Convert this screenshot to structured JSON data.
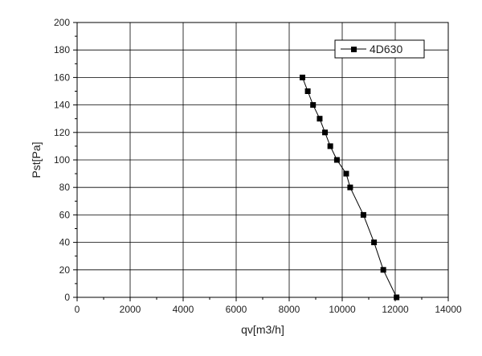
{
  "chart_data": {
    "type": "line",
    "title": "",
    "xlabel": "qv[m3/h]",
    "ylabel": "Pst[Pa]",
    "xlim": [
      0,
      14000
    ],
    "ylim": [
      0,
      200
    ],
    "x_ticks": [
      0,
      2000,
      4000,
      6000,
      8000,
      10000,
      12000,
      14000
    ],
    "y_ticks": [
      0,
      20,
      40,
      60,
      80,
      100,
      120,
      140,
      160,
      180,
      200
    ],
    "x_tick_labels": [
      "0",
      "2000",
      "4000",
      "6000",
      "8000",
      "10000",
      "12000",
      "14000"
    ],
    "y_tick_labels": [
      "0",
      "20",
      "40",
      "60",
      "80",
      "100",
      "120",
      "140",
      "160",
      "180",
      "200"
    ],
    "grid": true,
    "legend_position": "top-right",
    "series": [
      {
        "name": "4D630",
        "marker": "square",
        "color": "#000000",
        "points": [
          {
            "x": 8500,
            "y": 160
          },
          {
            "x": 8700,
            "y": 150
          },
          {
            "x": 8900,
            "y": 140
          },
          {
            "x": 9150,
            "y": 130
          },
          {
            "x": 9350,
            "y": 120
          },
          {
            "x": 9550,
            "y": 110
          },
          {
            "x": 9800,
            "y": 100
          },
          {
            "x": 10150,
            "y": 90
          },
          {
            "x": 10300,
            "y": 80
          },
          {
            "x": 10800,
            "y": 60
          },
          {
            "x": 11200,
            "y": 40
          },
          {
            "x": 11550,
            "y": 20
          },
          {
            "x": 12050,
            "y": 0
          }
        ]
      }
    ]
  }
}
